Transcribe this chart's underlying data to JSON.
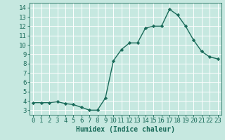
{
  "x": [
    0,
    1,
    2,
    3,
    4,
    5,
    6,
    7,
    8,
    9,
    10,
    11,
    12,
    13,
    14,
    15,
    16,
    17,
    18,
    19,
    20,
    21,
    22,
    23
  ],
  "y": [
    3.8,
    3.8,
    3.8,
    3.9,
    3.7,
    3.6,
    3.3,
    3.0,
    3.0,
    4.3,
    8.3,
    9.5,
    10.2,
    10.2,
    11.8,
    12.0,
    12.0,
    13.8,
    13.2,
    12.0,
    10.5,
    9.3,
    8.7,
    8.5
  ],
  "line_color": "#1a6b5a",
  "marker": "D",
  "marker_size": 2.2,
  "linewidth": 1.0,
  "xlabel": "Humidex (Indice chaleur)",
  "xlim": [
    -0.5,
    23.5
  ],
  "ylim": [
    2.5,
    14.5
  ],
  "yticks": [
    3,
    4,
    5,
    6,
    7,
    8,
    9,
    10,
    11,
    12,
    13,
    14
  ],
  "xticks": [
    0,
    1,
    2,
    3,
    4,
    5,
    6,
    7,
    8,
    9,
    10,
    11,
    12,
    13,
    14,
    15,
    16,
    17,
    18,
    19,
    20,
    21,
    22,
    23
  ],
  "bg_color": "#c6e8e0",
  "grid_color": "#ffffff",
  "tick_color": "#1a6b5a",
  "label_color": "#1a6b5a",
  "xlabel_fontsize": 7,
  "tick_fontsize": 6.5
}
